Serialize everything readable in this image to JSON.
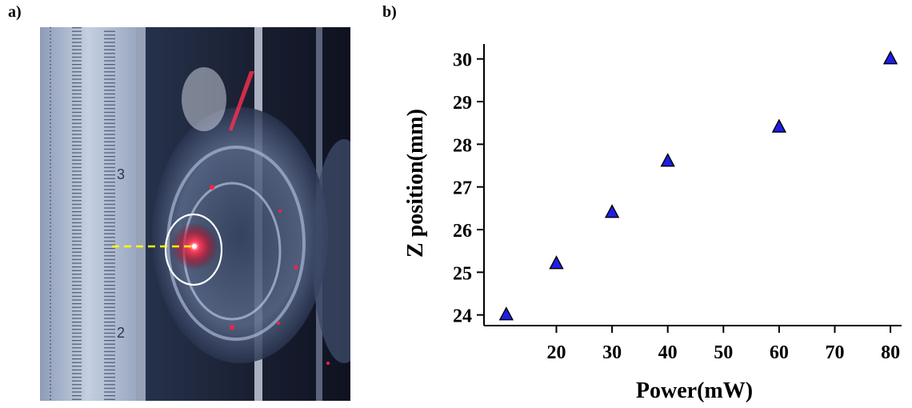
{
  "panels": {
    "a_label": "a)",
    "b_label": "b)"
  },
  "photo": {
    "ruler_marks": [
      "3",
      "2"
    ],
    "marker_color": "#ffff00",
    "highlight_circle_color": "#ffffff",
    "laser_color": "#ff2040"
  },
  "chart_data": {
    "type": "scatter",
    "xlabel": "Power(mW)",
    "ylabel": "Z position(mm)",
    "xlim": [
      7,
      82
    ],
    "ylim": [
      23.75,
      30.35
    ],
    "xticks": [
      20,
      30,
      40,
      50,
      60,
      70,
      80
    ],
    "yticks": [
      24,
      25,
      26,
      27,
      28,
      29,
      30
    ],
    "marker": "triangle",
    "marker_color": "#1e1ee6",
    "series": [
      {
        "x": [
          11,
          20,
          30,
          40,
          60,
          80
        ],
        "y": [
          24.0,
          25.2,
          26.4,
          27.6,
          28.4,
          30.0
        ]
      }
    ]
  }
}
